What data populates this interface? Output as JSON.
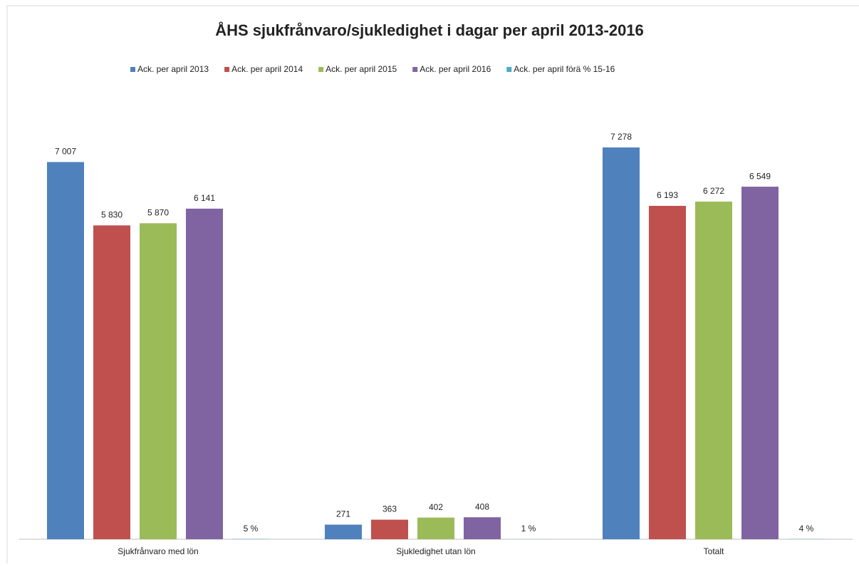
{
  "chart_data": {
    "type": "bar",
    "title": "ÅHS sjukfrånvaro/sjukledighet i dagar per april 2013-2016",
    "categories": [
      "Sjukfrånvaro med lön",
      "Sjukledighet utan lön",
      "Totalt"
    ],
    "series": [
      {
        "name": "Ack. per april 2013",
        "color": "#4f81bd",
        "values": [
          7007,
          271,
          7278
        ],
        "value_labels": [
          "7 007",
          "271",
          "7 278"
        ]
      },
      {
        "name": "Ack. per april 2014",
        "color": "#c0504d",
        "values": [
          5830,
          363,
          6193
        ],
        "value_labels": [
          "5 830",
          "363",
          "6 193"
        ]
      },
      {
        "name": "Ack. per april 2015",
        "color": "#9bbb59",
        "values": [
          5870,
          402,
          6272
        ],
        "value_labels": [
          "5 870",
          "402",
          "6 272"
        ]
      },
      {
        "name": "Ack. per april 2016",
        "color": "#8064a2",
        "values": [
          6141,
          408,
          6549
        ],
        "value_labels": [
          "6 141",
          "408",
          "6 549"
        ]
      },
      {
        "name": "Ack. per april förä % 15-16",
        "color": "#4bacc6",
        "values": [
          5,
          1,
          4
        ],
        "value_labels": [
          "5 %",
          "1 %",
          "4 %"
        ]
      }
    ],
    "legend": "top"
  }
}
